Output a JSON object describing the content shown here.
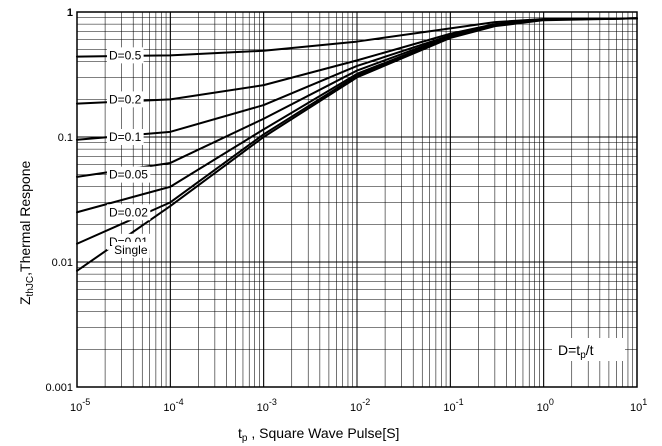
{
  "chart_data": {
    "type": "line",
    "x_scale": "log",
    "y_scale": "log",
    "xlim": [
      1e-05,
      10
    ],
    "ylim": [
      0.001,
      1
    ],
    "grid": true,
    "x_ticks": [
      {
        "value": 1e-05,
        "base": "10",
        "exp": "-5"
      },
      {
        "value": 0.0001,
        "base": "10",
        "exp": "-4"
      },
      {
        "value": 0.001,
        "base": "10",
        "exp": "-3"
      },
      {
        "value": 0.01,
        "base": "10",
        "exp": "-2"
      },
      {
        "value": 0.1,
        "base": "10",
        "exp": "-1"
      },
      {
        "value": 1,
        "base": "10",
        "exp": "0"
      },
      {
        "value": 10,
        "base": "10",
        "exp": "1"
      }
    ],
    "y_ticks": [
      {
        "value": 0.001,
        "label": "0.001"
      },
      {
        "value": 0.01,
        "label": "0.01"
      },
      {
        "value": 0.1,
        "label": "0.1"
      },
      {
        "value": 1,
        "label": "1"
      }
    ],
    "xlabel": {
      "main": "t",
      "sub": "p",
      "rest": " ,  Square Wave Pulse[S]"
    },
    "ylabel": {
      "main": "Z",
      "sub": "thJC",
      "rest": ",Thermal Respone"
    },
    "annotation": {
      "prefix": "D=t",
      "sub": "p",
      "suffix": "/t"
    },
    "series": [
      {
        "label": "D=0.5",
        "label_at": [
          2.2e-05,
          0.45
        ],
        "points": [
          [
            1e-05,
            0.44
          ],
          [
            0.0001,
            0.45
          ],
          [
            0.001,
            0.49
          ],
          [
            0.01,
            0.58
          ],
          [
            0.1,
            0.74
          ],
          [
            0.3,
            0.83
          ],
          [
            1,
            0.88
          ],
          [
            10,
            0.89
          ]
        ]
      },
      {
        "label": "D=0.2",
        "label_at": [
          2.2e-05,
          0.2
        ],
        "points": [
          [
            1e-05,
            0.185
          ],
          [
            0.0001,
            0.2
          ],
          [
            0.001,
            0.26
          ],
          [
            0.01,
            0.41
          ],
          [
            0.1,
            0.67
          ],
          [
            0.3,
            0.8
          ],
          [
            1,
            0.87
          ],
          [
            10,
            0.89
          ]
        ]
      },
      {
        "label": "D=0.1",
        "label_at": [
          2.2e-05,
          0.1
        ],
        "points": [
          [
            1e-05,
            0.095
          ],
          [
            0.0001,
            0.11
          ],
          [
            0.001,
            0.18
          ],
          [
            0.01,
            0.37
          ],
          [
            0.1,
            0.65
          ],
          [
            0.3,
            0.79
          ],
          [
            1,
            0.87
          ],
          [
            10,
            0.89
          ]
        ]
      },
      {
        "label": "D=0.05",
        "label_at": [
          2.2e-05,
          0.05
        ],
        "points": [
          [
            1e-05,
            0.048
          ],
          [
            0.0001,
            0.062
          ],
          [
            0.001,
            0.14
          ],
          [
            0.01,
            0.34
          ],
          [
            0.1,
            0.64
          ],
          [
            0.3,
            0.78
          ],
          [
            1,
            0.87
          ],
          [
            10,
            0.89
          ]
        ]
      },
      {
        "label": "D=0.02",
        "label_at": [
          2.2e-05,
          0.025
        ],
        "points": [
          [
            1e-05,
            0.025
          ],
          [
            0.0001,
            0.04
          ],
          [
            0.001,
            0.115
          ],
          [
            0.01,
            0.32
          ],
          [
            0.1,
            0.63
          ],
          [
            0.3,
            0.78
          ],
          [
            1,
            0.87
          ],
          [
            10,
            0.89
          ]
        ]
      },
      {
        "label": "D=0.01",
        "label_at": [
          2.2e-05,
          0.0145
        ],
        "points": [
          [
            1e-05,
            0.014
          ],
          [
            0.0001,
            0.03
          ],
          [
            0.001,
            0.105
          ],
          [
            0.01,
            0.31
          ],
          [
            0.1,
            0.625
          ],
          [
            0.3,
            0.78
          ],
          [
            1,
            0.87
          ],
          [
            10,
            0.89
          ]
        ]
      },
      {
        "label": "Single",
        "label_at": [
          2.5e-05,
          0.0125
        ],
        "points": [
          [
            1e-05,
            0.0085
          ],
          [
            0.0001,
            0.028
          ],
          [
            0.001,
            0.1
          ],
          [
            0.01,
            0.3
          ],
          [
            0.1,
            0.62
          ],
          [
            0.3,
            0.77
          ],
          [
            1,
            0.86
          ],
          [
            10,
            0.89
          ]
        ]
      }
    ]
  }
}
